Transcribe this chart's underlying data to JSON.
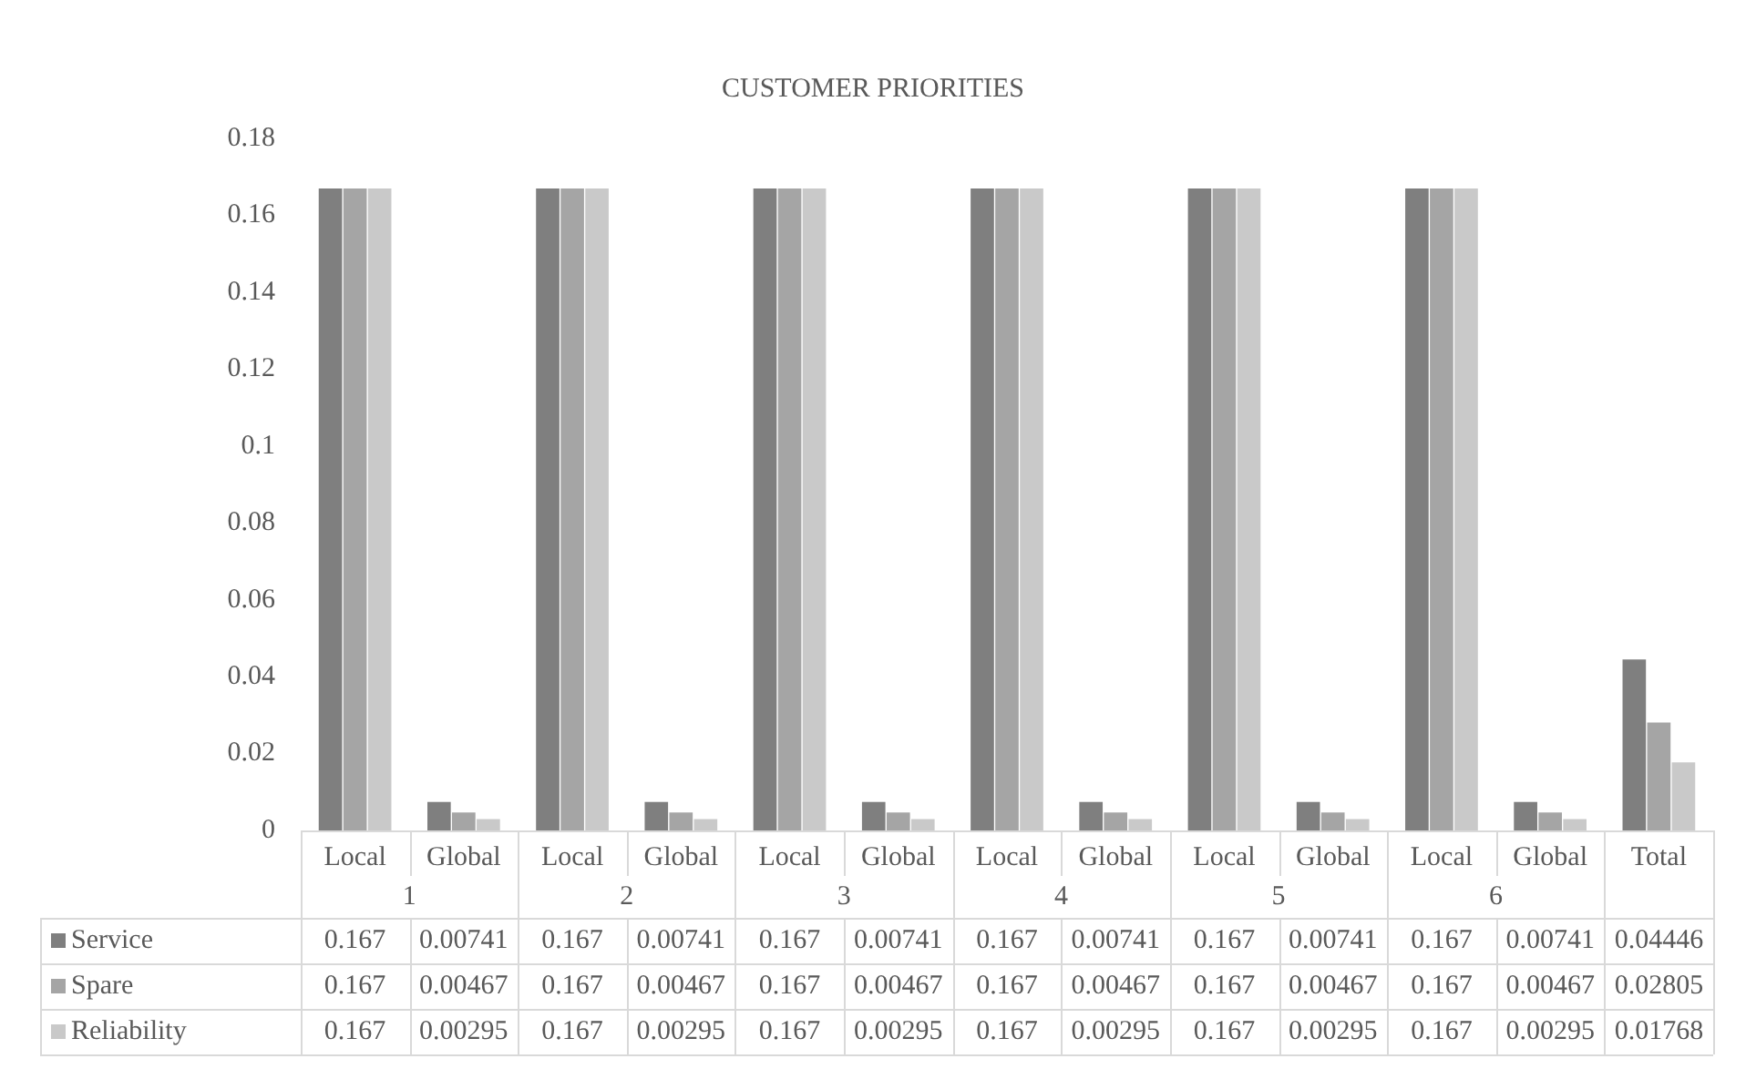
{
  "chart_data": {
    "type": "bar",
    "title": "CUSTOMER PRIORITIES",
    "categories": [
      "Local",
      "Global",
      "Local",
      "Global",
      "Local",
      "Global",
      "Local",
      "Global",
      "Local",
      "Global",
      "Local",
      "Global",
      "Total"
    ],
    "annotations": [
      "1",
      "2",
      "3",
      "4",
      "5",
      "6"
    ],
    "series": [
      {
        "name": "Service",
        "color": "#7f7f7f",
        "values": [
          0.167,
          0.00741,
          0.167,
          0.00741,
          0.167,
          0.00741,
          0.167,
          0.00741,
          0.167,
          0.00741,
          0.167,
          0.00741,
          0.04446
        ]
      },
      {
        "name": "Spare",
        "color": "#a5a5a5",
        "values": [
          0.167,
          0.00467,
          0.167,
          0.00467,
          0.167,
          0.00467,
          0.167,
          0.00467,
          0.167,
          0.00467,
          0.167,
          0.00467,
          0.02805
        ]
      },
      {
        "name": "Reliability",
        "color": "#c9c9c9",
        "values": [
          0.167,
          0.00295,
          0.167,
          0.00295,
          0.167,
          0.00295,
          0.167,
          0.00295,
          0.167,
          0.00295,
          0.167,
          0.00295,
          0.01768
        ]
      }
    ],
    "ylim": [
      0,
      0.18
    ],
    "yticks": [
      0,
      0.02,
      0.04,
      0.06,
      0.08,
      0.1,
      0.12,
      0.14,
      0.16,
      0.18
    ],
    "grid": false,
    "legend": "bottom",
    "data_labels": true
  }
}
